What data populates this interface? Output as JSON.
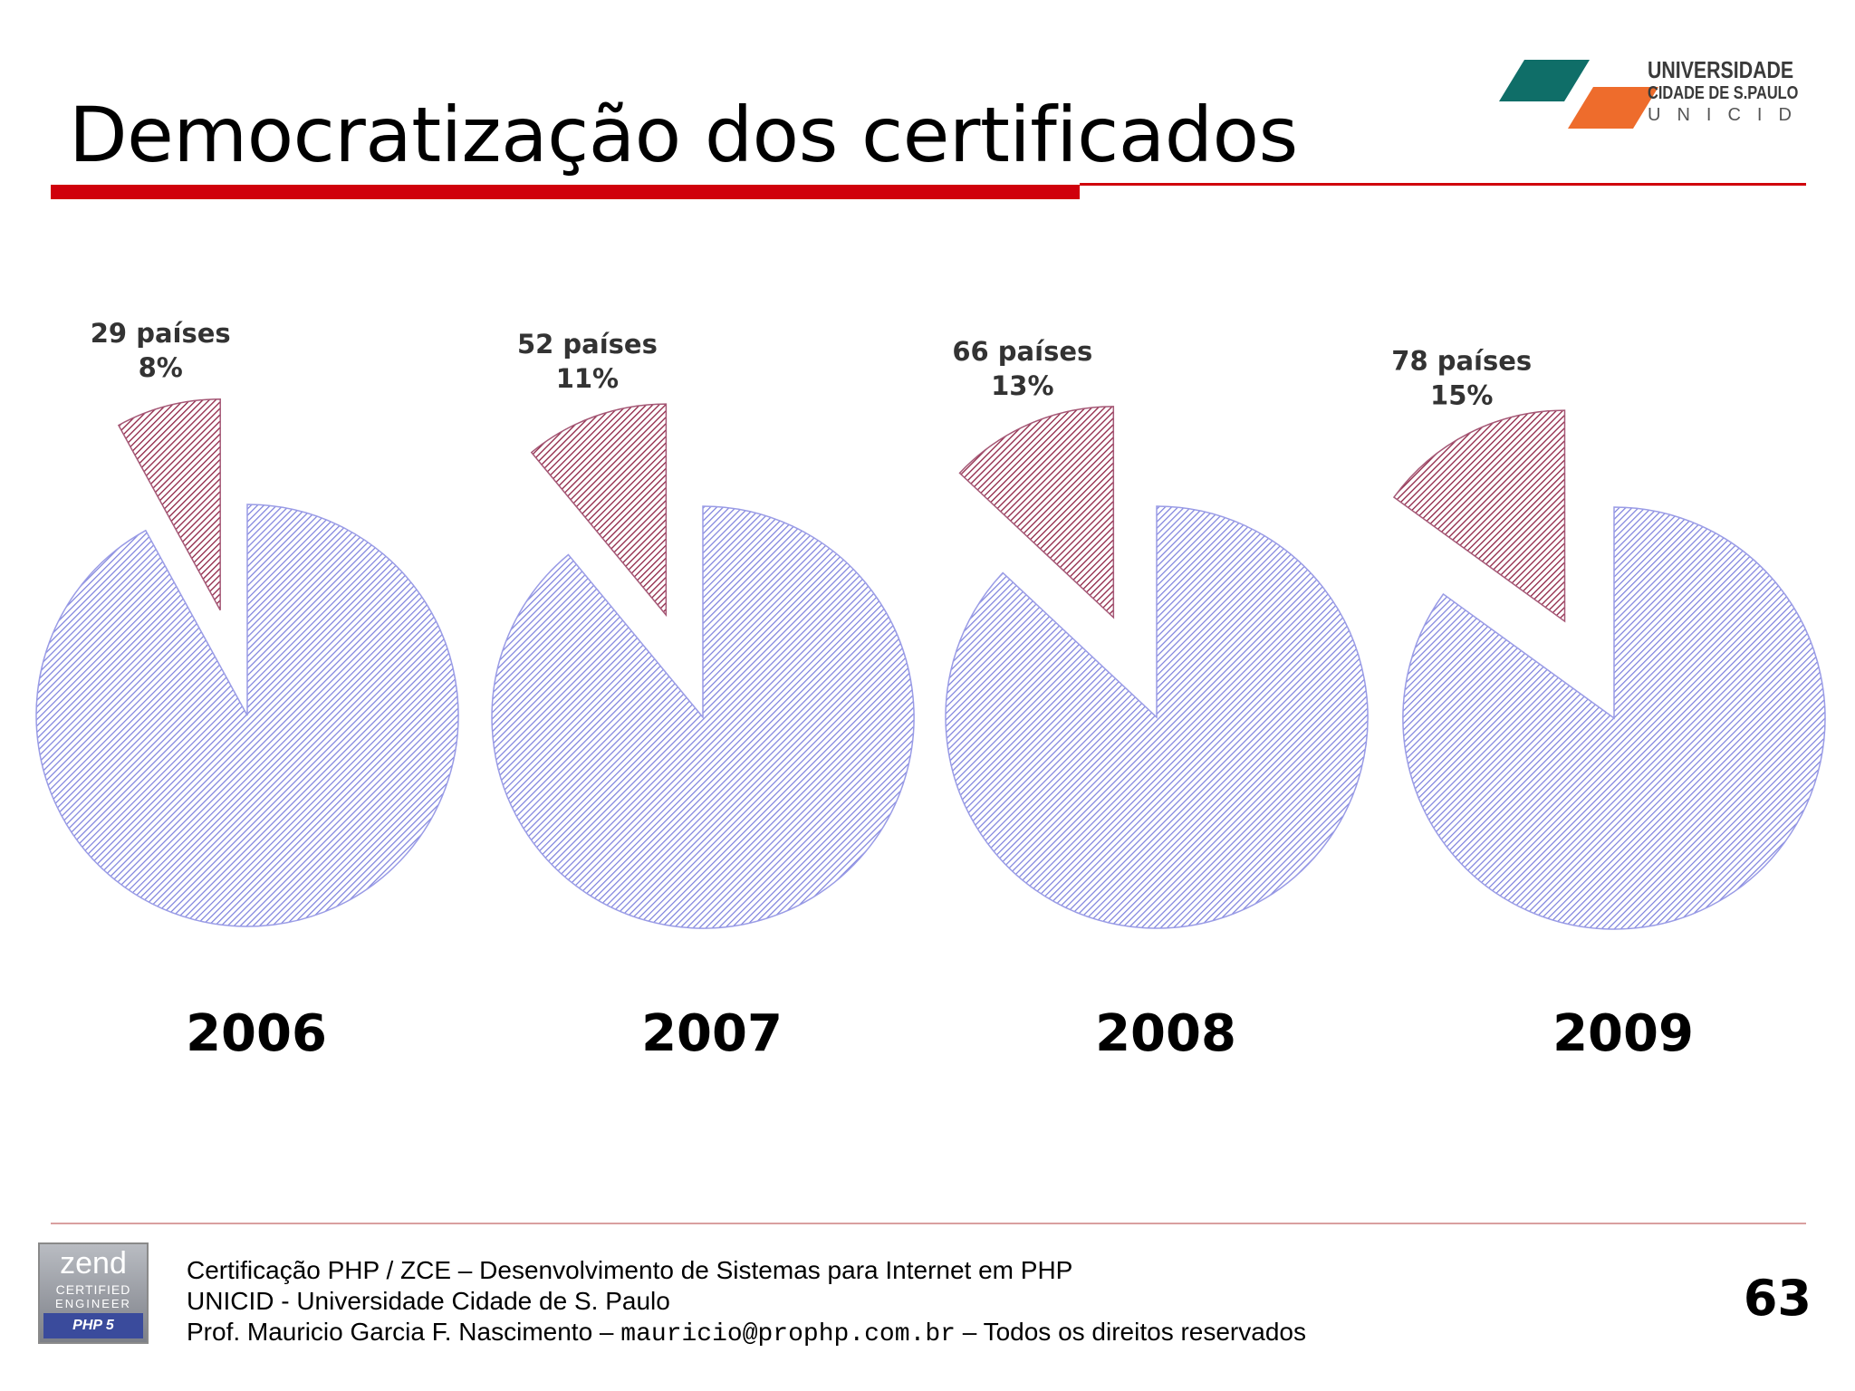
{
  "slide": {
    "title": "Democratização dos certificados",
    "page_number": "63"
  },
  "logo": {
    "line1": "UNIVERSIDADE",
    "line2": "CIDADE DE S.PAULO",
    "line3": "UNICID",
    "colors": {
      "green": "#0f6e68",
      "orange": "#ee6c2c"
    }
  },
  "chart_data": [
    {
      "type": "pie",
      "year": "2006",
      "label_countries": "29 países",
      "label_percent": "8%",
      "exploded_percent": 8,
      "remainder_percent": 92
    },
    {
      "type": "pie",
      "year": "2007",
      "label_countries": "52 países",
      "label_percent": "11%",
      "exploded_percent": 11,
      "remainder_percent": 89
    },
    {
      "type": "pie",
      "year": "2008",
      "label_countries": "66 países",
      "label_percent": "13%",
      "exploded_percent": 13,
      "remainder_percent": 87
    },
    {
      "type": "pie",
      "year": "2009",
      "label_countries": "78 países",
      "label_percent": "15%",
      "exploded_percent": 15,
      "remainder_percent": 85
    }
  ],
  "colors": {
    "accent_red": "#d0000c",
    "slice_main": "#7b7fdc",
    "slice_exploded": "#8e2244"
  },
  "badge": {
    "line1": "zend",
    "line2": "CERTIFIED",
    "line3": "ENGINEER",
    "line4": "PHP 5"
  },
  "footer": {
    "line1": "Certificação PHP / ZCE – Desenvolvimento de Sistemas para Internet em PHP",
    "line2": "UNICID - Universidade Cidade de S. Paulo",
    "line3_prefix": "Prof. Mauricio Garcia F. Nascimento – ",
    "email": "mauricio@prophp.com.br",
    "line3_sep": " – ",
    "line3_suffix": "Todos os direitos reservados"
  }
}
